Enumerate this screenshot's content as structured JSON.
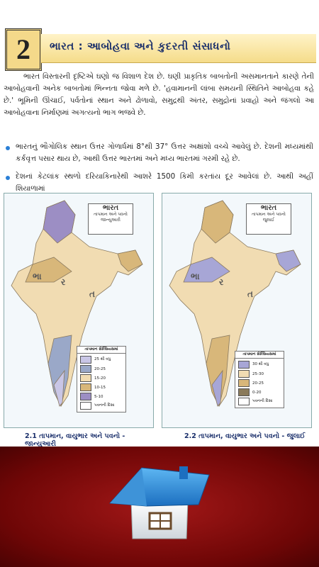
{
  "header": {
    "number": "2",
    "title": "ભારત : આબોહવા અને કુદરતી સંસાધનો"
  },
  "intro": "ભારત વિસ્તારની દૃષ્ટિએ ઘણો જ વિશાળ દેશ છે. ઘણી પ્રાકૃતિક બાબતોની અસમાનતાને કારણે તેની આબોહવાની અનેક બાબતોમાં ભિન્નતા જોવા મળે છે. 'હવામાનની લાંબા સમયની સ્થિતિને આબોહવા કહે છે.' ભૂમિની ઊંચાઈ, પર્વતોનાં સ્થાન અને ઢોળાવો, સમુદ્રથી અંતર, સમુદ્રોનાં પ્રવાહો અને જંગલો આ આબોહવાના નિર્માણમાં અગત્યનો ભાગ ભજવે છે.",
  "bullets": [
    "ભારતનું ભૌગોલિક સ્થાન ઉત્તર ગોળાર્ધમાં 8°થી 37° ઉત્તર અક્ષાંશો વચ્ચે આવેલું છે. દેશની મધ્યમાંથી કર્કવૃત્ત પસાર થાય છે, આથી ઉત્તર ભારતમાં અને મધ્ય ભારતમાં ગરમી રહે છે.",
    "દેશનાં કેટલાંક સ્થળો દરિયાકિનારેથી આશરે 1500 કિમી કરતાંય દૂર આવેલાં છે. આથી અહીં શિયાળામાં"
  ],
  "maps": [
    {
      "country": "ભારત",
      "subtitle": "તાપમાન અને પવનો જાન્યુઆરી",
      "map_text": [
        "ભા",
        "ર",
        "ત"
      ],
      "legend_title": "તાપમાન સેલ્સિયસમાં",
      "legend": [
        {
          "label": "25 થી વધુ",
          "color": "#c9c6e6"
        },
        {
          "label": "20-25",
          "color": "#9aa8c8"
        },
        {
          "label": "15-20",
          "color": "#f1dcb2"
        },
        {
          "label": "10-15",
          "color": "#d8b77a"
        },
        {
          "label": "5-10",
          "color": "#9c8ec4"
        },
        {
          "label": "પવનની દિશા",
          "color": "#ffffff"
        }
      ],
      "caption": "2.1 તાપમાન, વાયુભાર અને પવનો - જાન્યુઆરી"
    },
    {
      "country": "ભારત",
      "subtitle": "તાપમાન અને પવનો જુલાઈ",
      "map_text": [
        "ભા",
        "ર",
        "ત"
      ],
      "legend_title": "તાપમાન સેલ્સિયસમાં",
      "legend": [
        {
          "label": "30 થી વધુ",
          "color": "#a7a6d6"
        },
        {
          "label": "25-30",
          "color": "#f1dcb2"
        },
        {
          "label": "20-25",
          "color": "#d8b77a"
        },
        {
          "label": "0-20",
          "color": "#8a7a5a"
        },
        {
          "label": "પવનની દિશા",
          "color": "#ffffff"
        }
      ],
      "caption": "2.2 તાપમાન, વાયુભાર અને પવનો - જુલાઈ"
    }
  ]
}
